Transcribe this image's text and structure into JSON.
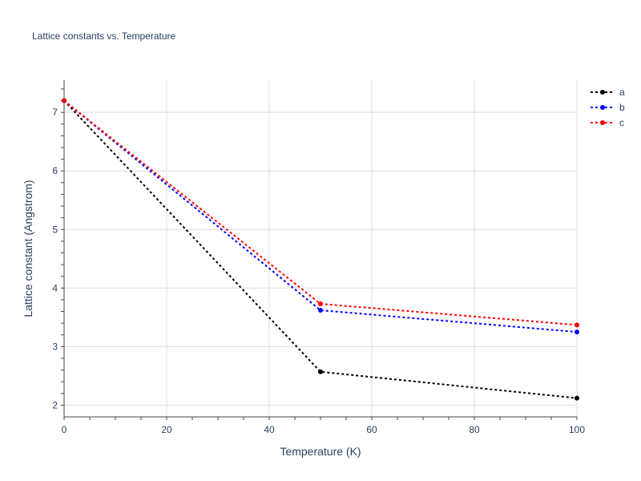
{
  "chart_data": {
    "type": "line",
    "title": "Lattice constants vs. Temperature",
    "xlabel": "Temperature (K)",
    "ylabel": "Lattice constant (Angstrom)",
    "xlim": [
      0,
      100
    ],
    "ylim": [
      1.8,
      7.55
    ],
    "x_ticks": [
      0,
      20,
      40,
      60,
      80,
      100
    ],
    "y_ticks": [
      2,
      3,
      4,
      5,
      6,
      7
    ],
    "grid": true,
    "legend_position": "top-right",
    "x": [
      0,
      50,
      100
    ],
    "series": [
      {
        "name": "a",
        "color": "#000000",
        "values": [
          7.2,
          2.57,
          2.12
        ]
      },
      {
        "name": "b",
        "color": "#0000ff",
        "values": [
          7.2,
          3.62,
          3.25
        ]
      },
      {
        "name": "c",
        "color": "#ff0000",
        "values": [
          7.2,
          3.73,
          3.37
        ]
      }
    ]
  }
}
